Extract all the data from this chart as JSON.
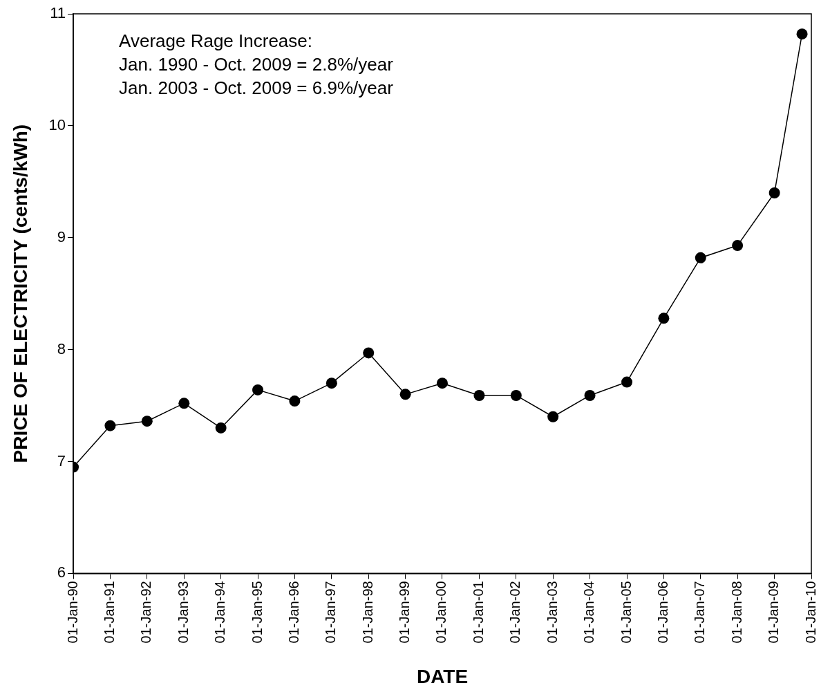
{
  "chart_data": {
    "type": "line",
    "xlabel": "DATE",
    "ylabel": "PRICE OF ELECTRICITY (cents/kWh)",
    "x": [
      "1990-01-01",
      "1991-01-01",
      "1992-01-01",
      "1993-01-01",
      "1994-01-01",
      "1995-01-01",
      "1996-01-01",
      "1997-01-01",
      "1998-01-01",
      "1999-01-01",
      "2000-01-01",
      "2001-01-01",
      "2002-01-01",
      "2003-01-01",
      "2004-01-01",
      "2005-01-01",
      "2006-01-01",
      "2007-01-01",
      "2008-01-01",
      "2009-01-01",
      "2009-10-01"
    ],
    "series": [
      {
        "color": "#000000",
        "values": [
          6.95,
          7.32,
          7.36,
          7.52,
          7.3,
          7.64,
          7.54,
          7.7,
          7.97,
          7.6,
          7.7,
          7.59,
          7.59,
          7.4,
          7.59,
          7.71,
          8.28,
          8.82,
          8.93,
          9.4,
          10.82
        ]
      }
    ],
    "xlim": [
      "1990-01-01",
      "2010-01-01"
    ],
    "xticks": [
      {
        "value": "1990-01-01",
        "label": "01-Jan-90"
      },
      {
        "value": "1991-01-01",
        "label": "01-Jan-91"
      },
      {
        "value": "1992-01-01",
        "label": "01-Jan-92"
      },
      {
        "value": "1993-01-01",
        "label": "01-Jan-93"
      },
      {
        "value": "1994-01-01",
        "label": "01-Jan-94"
      },
      {
        "value": "1995-01-01",
        "label": "01-Jan-95"
      },
      {
        "value": "1996-01-01",
        "label": "01-Jan-96"
      },
      {
        "value": "1997-01-01",
        "label": "01-Jan-97"
      },
      {
        "value": "1998-01-01",
        "label": "01-Jan-98"
      },
      {
        "value": "1999-01-01",
        "label": "01-Jan-99"
      },
      {
        "value": "2000-01-01",
        "label": "01-Jan-00"
      },
      {
        "value": "2001-01-01",
        "label": "01-Jan-01"
      },
      {
        "value": "2002-01-01",
        "label": "01-Jan-02"
      },
      {
        "value": "2003-01-01",
        "label": "01-Jan-03"
      },
      {
        "value": "2004-01-01",
        "label": "01-Jan-04"
      },
      {
        "value": "2005-01-01",
        "label": "01-Jan-05"
      },
      {
        "value": "2006-01-01",
        "label": "01-Jan-06"
      },
      {
        "value": "2007-01-01",
        "label": "01-Jan-07"
      },
      {
        "value": "2008-01-01",
        "label": "01-Jan-08"
      },
      {
        "value": "2009-01-01",
        "label": "01-Jan-09"
      },
      {
        "value": "2010-01-01",
        "label": "01-Jan-10"
      }
    ],
    "ylim": [
      6,
      11
    ],
    "yticks": [
      6,
      7,
      8,
      9,
      10,
      11
    ],
    "grid": false,
    "legend": false,
    "marker": "circle",
    "line_style": "solid",
    "annotations": [
      "Average Rage Increase:",
      "Jan. 1990 - Oct. 2009 = 2.8%/year",
      "Jan. 2003 - Oct. 2009 = 6.9%/year"
    ]
  }
}
